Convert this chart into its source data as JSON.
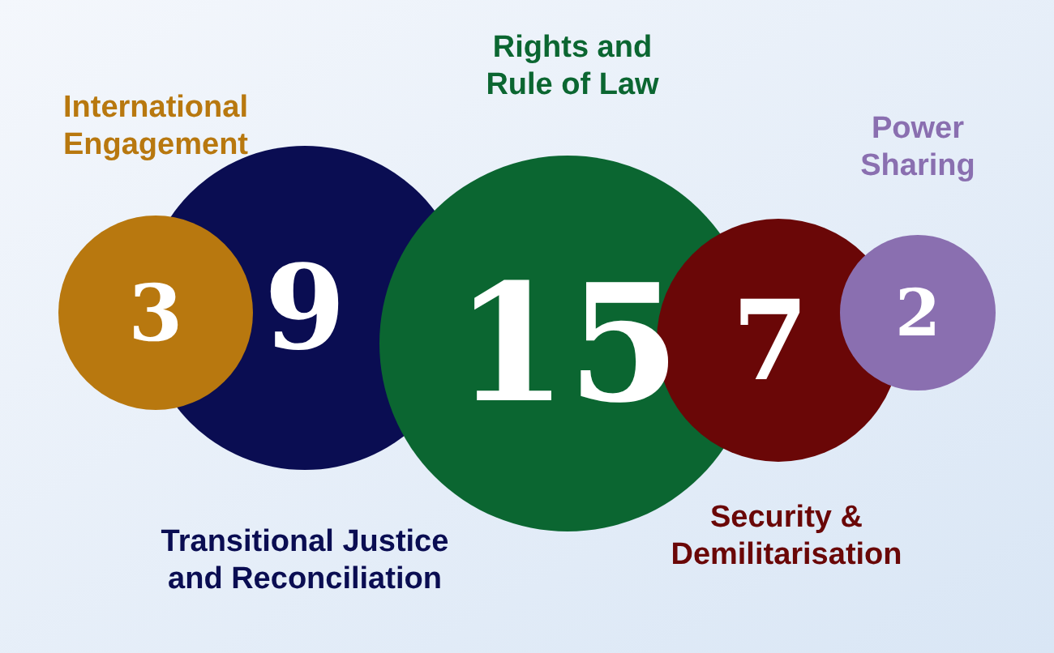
{
  "chart_data": {
    "type": "other",
    "categories": [
      "International Engagement",
      "Transitional Justice and Reconciliation",
      "Rights and Rule of Law",
      "Security & Demilitarisation",
      "Power Sharing"
    ],
    "values": [
      3,
      9,
      15,
      7,
      2
    ],
    "colors": [
      "#b8780f",
      "#0a0d52",
      "#0b6631",
      "#6a0707",
      "#8a6fb0"
    ],
    "data_labels": true
  }
}
